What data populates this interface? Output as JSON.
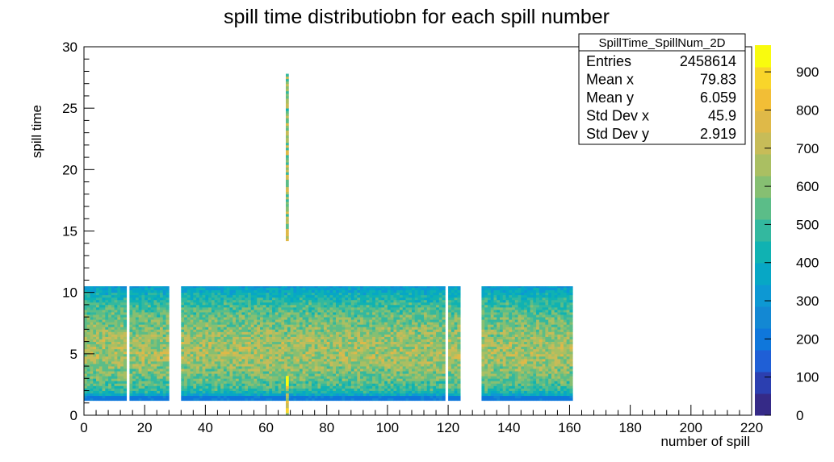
{
  "chart_data": {
    "type": "heatmap",
    "title": "spill time distributiobn for each spill number",
    "xlabel": "number of spill",
    "ylabel": "spill time",
    "xlim": [
      0,
      220
    ],
    "ylim": [
      0,
      30
    ],
    "x_ticks": [
      "0",
      "20",
      "40",
      "60",
      "80",
      "100",
      "120",
      "140",
      "160",
      "180",
      "200",
      "220"
    ],
    "y_ticks": [
      "0",
      "5",
      "10",
      "15",
      "20",
      "25",
      "30"
    ],
    "colorbar": {
      "range": [
        0,
        970
      ],
      "ticks": [
        "0",
        "100",
        "200",
        "300",
        "400",
        "500",
        "600",
        "700",
        "800",
        "900"
      ],
      "palette": [
        "#352a87",
        "#2b3fb0",
        "#1f5fd6",
        "#0f77db",
        "#1388d3",
        "#0d98d3",
        "#07a7c5",
        "#10b2b2",
        "#33b89f",
        "#5bbd88",
        "#86bf72",
        "#aabf62",
        "#c7bc58",
        "#dfb948",
        "#f2be36",
        "#f9d52a",
        "#f9fb0e"
      ]
    },
    "stats_box": {
      "name": "SpillTime_SpillNum_2D",
      "rows": [
        {
          "label": "Entries",
          "value": "2458614"
        },
        {
          "label": "Mean x",
          "value": "79.83"
        },
        {
          "label": "Mean y",
          "value": "6.059"
        },
        {
          "label": "Std Dev x",
          "value": "45.9"
        },
        {
          "label": "Std Dev y",
          "value": "2.919"
        }
      ]
    },
    "filled_spill_ranges": [
      [
        1,
        14
      ],
      [
        16,
        28
      ],
      [
        33,
        119
      ],
      [
        121,
        124
      ],
      [
        132,
        161
      ]
    ],
    "spill_time_range": [
      1.2,
      10.5
    ],
    "profile_along_time": {
      "y": [
        1.2,
        1.5,
        2,
        3,
        4,
        5,
        6,
        7,
        8,
        9,
        10,
        10.5
      ],
      "content": [
        200,
        300,
        480,
        560,
        620,
        660,
        640,
        600,
        560,
        500,
        400,
        320
      ]
    },
    "anomaly": {
      "spill": 67,
      "segments": [
        {
          "y_range": [
            0,
            3.2
          ],
          "content": 700
        },
        {
          "y_range": [
            14.2,
            27.8
          ],
          "content": 620
        }
      ]
    }
  }
}
